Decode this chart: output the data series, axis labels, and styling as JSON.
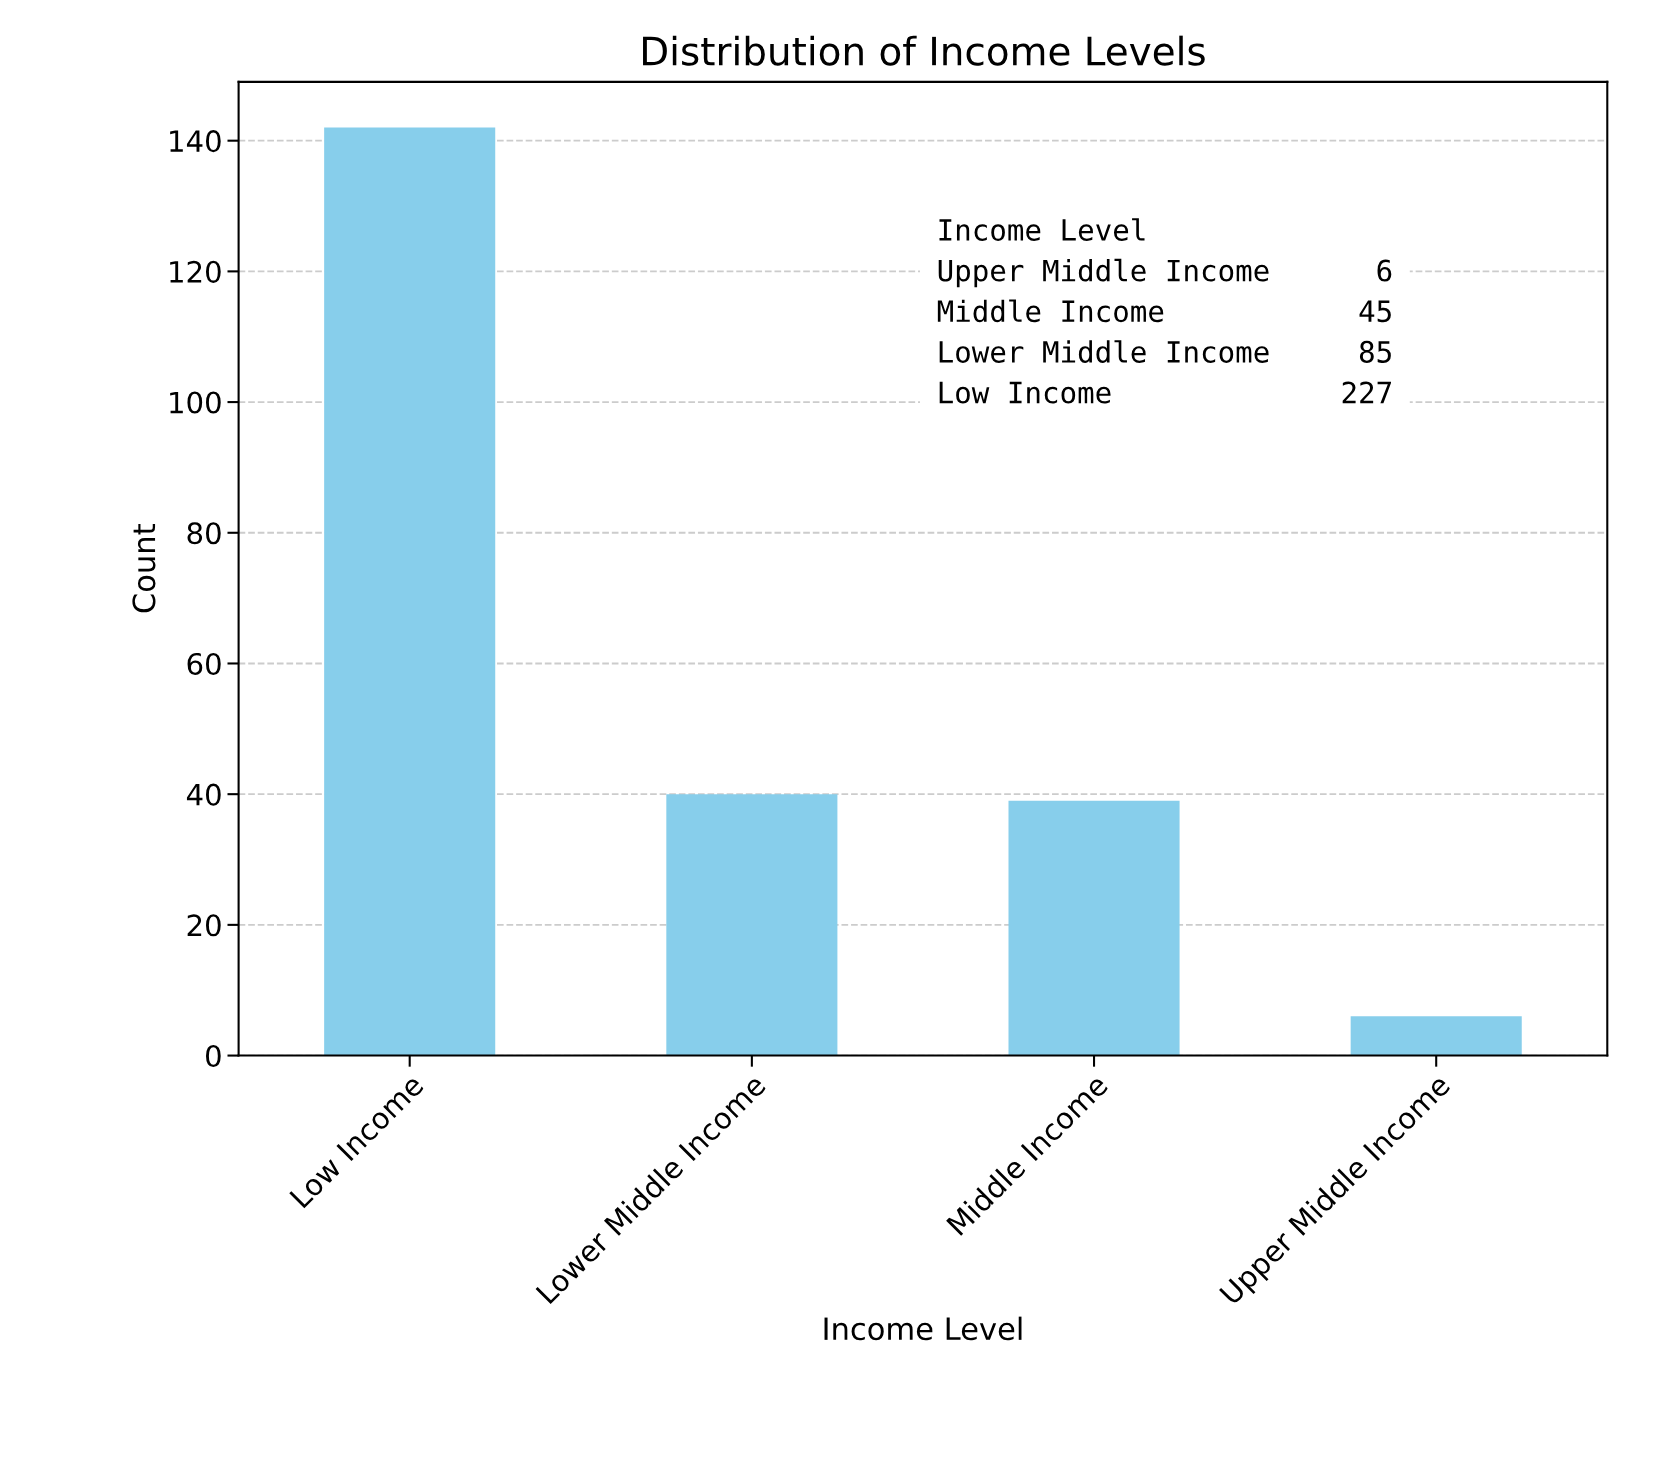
{
  "chart_data": {
    "type": "bar",
    "title": "Distribution of Income Levels",
    "xlabel": "Income Level",
    "ylabel": "Count",
    "categories": [
      "Low Income",
      "Lower Middle Income",
      "Middle Income",
      "Upper Middle Income"
    ],
    "values": [
      142,
      40,
      39,
      6
    ],
    "color": "#87ceeb",
    "ylim": [
      0,
      149
    ],
    "yticks": [
      0,
      20,
      40,
      60,
      80,
      100,
      120,
      140
    ],
    "grid": "y",
    "annotations": [
      "Income Level\nUpper Middle Income      6\nMiddle Income           45\nLower Middle Income     85\nLow Income             227"
    ]
  }
}
